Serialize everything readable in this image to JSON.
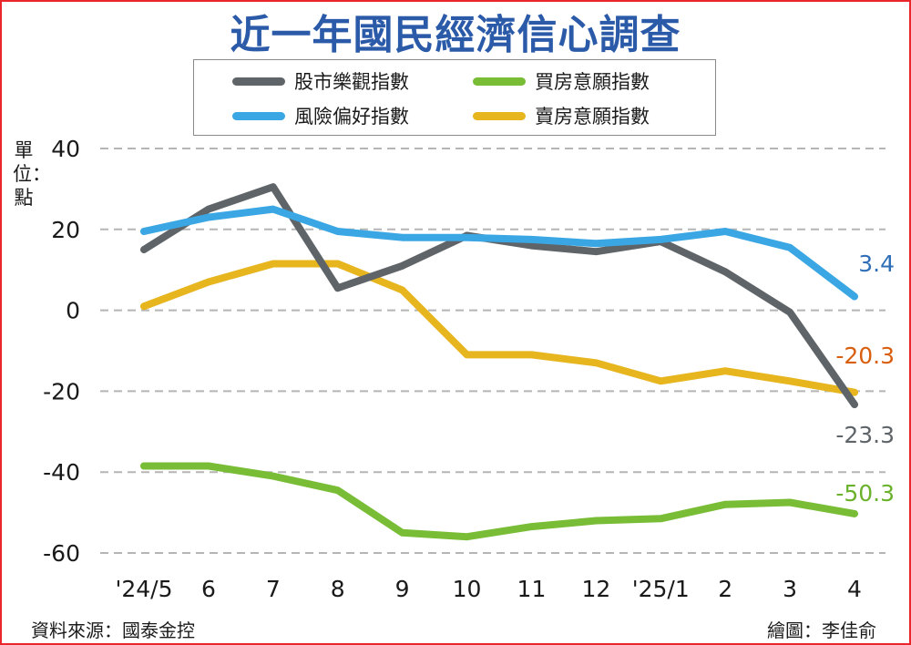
{
  "chart_data": {
    "type": "line",
    "title": "近一年國民經濟信心調查",
    "ylabel": "單位：點",
    "ylim": [
      -60,
      40
    ],
    "yticks": [
      40,
      20,
      0,
      -20,
      -40,
      -60
    ],
    "categories": [
      "'24/5",
      "6",
      "7",
      "8",
      "9",
      "10",
      "11",
      "12",
      "'25/1",
      "2",
      "3",
      "4"
    ],
    "grid": true,
    "legend_position": "top",
    "series": [
      {
        "name": "股市樂觀指數",
        "color": "#5f6468",
        "values": [
          15,
          25,
          30.5,
          5.5,
          11,
          18.5,
          16,
          14.5,
          17,
          9.5,
          -0.5,
          -23.3
        ],
        "end_label": "-23.3",
        "label_color": "#5f6468"
      },
      {
        "name": "風險偏好指數",
        "color": "#3aa7e4",
        "values": [
          19.5,
          23,
          25,
          19.5,
          18,
          18,
          17.5,
          16.5,
          17.5,
          19.5,
          15.5,
          3.4
        ],
        "end_label": "3.4",
        "label_color": "#2f6fb7"
      },
      {
        "name": "買房意願指數",
        "color": "#79bd36",
        "values": [
          -38.5,
          -38.5,
          -41,
          -44.5,
          -55,
          -56,
          -53.5,
          -52,
          -51.5,
          -48,
          -47.5,
          -50.3
        ],
        "end_label": "-50.3",
        "label_color": "#6bb22c"
      },
      {
        "name": "賣房意願指數",
        "color": "#e7b51e",
        "values": [
          1,
          7,
          11.5,
          11.5,
          5,
          -11,
          -11,
          -13,
          -17.5,
          -15,
          -17.5,
          -20.3
        ],
        "end_label": "-20.3",
        "label_color": "#d85f0f"
      }
    ]
  },
  "footer": {
    "source": "資料來源：國泰金控",
    "credit": "繪圖：李佳俞"
  }
}
